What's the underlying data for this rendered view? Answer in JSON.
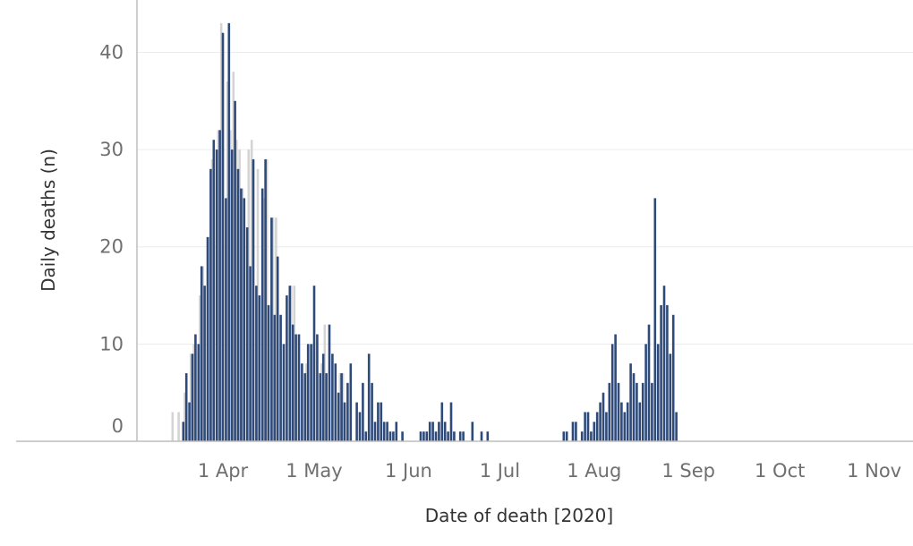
{
  "chart_data": {
    "type": "bar",
    "title": "",
    "xlabel": "Date of death [2020]",
    "ylabel": "Daily deaths (n)",
    "ylim": [
      0,
      44
    ],
    "yticks": [
      0,
      10,
      20,
      30,
      40
    ],
    "grid": true,
    "date_range": [
      "2020-03-15",
      "2020-11-04"
    ],
    "xticks": [
      {
        "date": "2020-04-01",
        "label": "1 Apr"
      },
      {
        "date": "2020-05-01",
        "label": "1 May"
      },
      {
        "date": "2020-06-01",
        "label": "1 Jun"
      },
      {
        "date": "2020-07-01",
        "label": "1 Jul"
      },
      {
        "date": "2020-08-01",
        "label": "1 Aug"
      },
      {
        "date": "2020-09-01",
        "label": "1 Sep"
      },
      {
        "date": "2020-10-01",
        "label": "1 Oct"
      },
      {
        "date": "2020-11-01",
        "label": "1 Nov"
      }
    ],
    "colors": {
      "dark": "#2e4a7a",
      "light": "#d4d4d4"
    },
    "series": [
      {
        "start_date": "2020-03-15",
        "values": [
          0,
          0,
          0,
          0,
          2,
          7,
          4,
          9,
          11,
          10,
          18,
          16,
          21,
          28,
          31,
          30,
          32,
          42,
          25,
          43,
          30,
          35,
          28,
          26,
          25,
          22,
          18,
          29,
          16,
          15,
          26,
          29,
          14,
          23,
          13,
          19,
          13,
          10,
          15,
          16,
          12,
          11,
          11,
          8,
          7,
          10,
          10,
          16,
          11,
          7,
          9,
          7,
          12,
          9,
          8,
          5,
          7,
          4,
          6,
          8,
          0,
          4,
          3,
          6,
          1,
          9,
          6,
          2,
          4,
          4,
          2,
          2,
          1,
          1,
          2,
          0,
          1,
          0,
          0,
          0,
          0,
          0,
          1,
          1,
          1,
          2,
          2,
          1,
          2,
          4,
          2,
          1,
          4,
          1,
          0,
          1,
          1,
          0,
          0,
          2,
          0,
          0,
          1,
          0,
          1,
          0,
          0,
          0,
          0,
          0,
          0,
          0,
          0,
          0,
          0,
          0,
          0,
          0,
          0,
          0,
          0,
          0,
          0,
          0,
          0,
          0,
          0,
          0,
          0,
          1,
          1,
          0,
          2,
          2,
          0,
          1,
          3,
          3,
          1,
          2,
          3,
          4,
          5,
          3,
          6,
          10,
          11,
          6,
          4,
          3,
          4,
          8,
          7,
          6,
          4,
          6,
          10,
          12,
          6,
          25,
          10,
          14,
          16,
          14,
          9,
          13,
          3,
          0
        ]
      },
      {
        "start_date": "2020-03-15",
        "values": [
          3,
          0,
          3,
          0,
          5,
          0,
          9,
          10,
          0,
          15,
          18,
          0,
          21,
          29,
          0,
          32,
          43,
          0,
          37,
          32,
          38,
          31,
          30,
          26,
          0,
          30,
          31,
          0,
          28,
          0,
          25,
          29,
          0,
          23,
          23,
          0,
          0,
          0,
          0,
          16,
          16,
          0,
          0,
          0,
          8,
          0,
          10,
          0,
          0,
          8,
          12,
          0,
          0,
          0,
          0,
          7,
          7,
          0,
          0,
          0,
          0,
          0,
          0,
          0,
          0,
          0,
          0,
          0,
          0,
          0,
          0,
          0,
          0,
          0,
          0,
          0,
          0,
          0,
          0,
          0,
          0,
          0,
          0,
          0,
          0,
          0,
          0,
          0,
          0,
          0,
          0,
          0,
          0,
          0,
          0,
          0,
          0,
          0,
          0,
          0,
          0,
          0,
          0,
          0,
          0,
          0,
          0,
          0,
          0,
          0,
          0,
          0,
          0,
          0,
          0,
          0,
          0,
          0,
          0,
          0,
          0,
          0,
          0,
          0,
          0,
          0,
          0,
          0,
          0,
          0,
          0,
          0,
          0,
          0,
          0,
          0,
          0,
          0,
          0,
          0,
          0,
          0,
          0,
          0,
          0,
          0,
          0,
          0,
          0,
          0,
          0,
          0,
          0,
          0,
          0,
          0,
          0,
          0,
          0,
          0,
          0,
          0,
          0,
          0,
          0,
          0,
          0,
          0
        ]
      }
    ]
  }
}
